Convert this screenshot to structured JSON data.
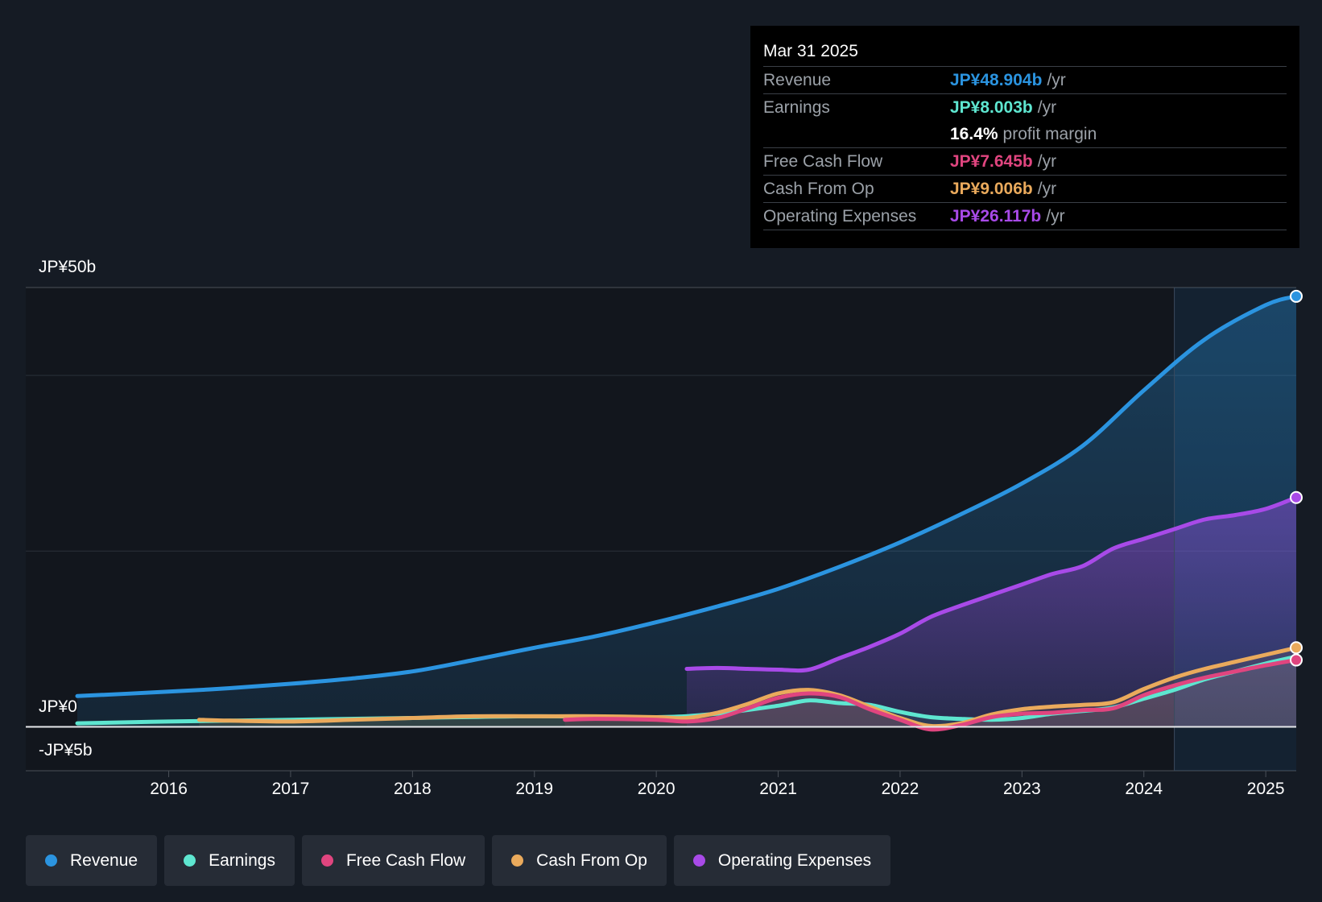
{
  "tooltip": {
    "date": "Mar 31 2025",
    "rows": [
      {
        "label": "Revenue",
        "value": "JP¥48.904b",
        "unit": "/yr",
        "color": "#2b94e0"
      },
      {
        "label": "Earnings",
        "value": "JP¥8.003b",
        "unit": "/yr",
        "color": "#5ee6d0"
      },
      {
        "label": "",
        "value": "16.4%",
        "unit": "profit margin",
        "color": "#ffffff"
      },
      {
        "label": "Free Cash Flow",
        "value": "JP¥7.645b",
        "unit": "/yr",
        "color": "#e0457f"
      },
      {
        "label": "Cash From Op",
        "value": "JP¥9.006b",
        "unit": "/yr",
        "color": "#eaaa5c"
      },
      {
        "label": "Operating Expenses",
        "value": "JP¥26.117b",
        "unit": "/yr",
        "color": "#a84ae8"
      }
    ]
  },
  "legend": [
    {
      "label": "Revenue",
      "color": "#2b94e0"
    },
    {
      "label": "Earnings",
      "color": "#5ee6d0"
    },
    {
      "label": "Free Cash Flow",
      "color": "#e0457f"
    },
    {
      "label": "Cash From Op",
      "color": "#eaaa5c"
    },
    {
      "label": "Operating Expenses",
      "color": "#a84ae8"
    }
  ],
  "chart_data": {
    "type": "line",
    "title": "",
    "xlabel": "",
    "ylabel": "",
    "ylim": [
      -5,
      50
    ],
    "xlim": [
      2015.25,
      2025.25
    ],
    "y_tick_labels": {
      "top": "JP¥50b",
      "zero": "JP¥0",
      "bottom": "-JP¥5b"
    },
    "x_ticks": [
      2016,
      2017,
      2018,
      2019,
      2020,
      2021,
      2022,
      2023,
      2024,
      2025
    ],
    "x_tick_labels": [
      "2016",
      "2017",
      "2018",
      "2019",
      "2020",
      "2021",
      "2022",
      "2023",
      "2024",
      "2025"
    ],
    "highlight_from": 2024.25,
    "series": [
      {
        "name": "Revenue",
        "color": "#2b94e0",
        "fill": true,
        "x": [
          2015.25,
          2016.0,
          2016.5,
          2017.0,
          2017.5,
          2018.0,
          2018.5,
          2019.0,
          2019.5,
          2020.0,
          2020.5,
          2021.0,
          2021.5,
          2022.0,
          2022.5,
          2023.0,
          2023.5,
          2024.0,
          2024.5,
          2025.0,
          2025.25
        ],
        "y": [
          3.5,
          4.0,
          4.4,
          4.9,
          5.5,
          6.3,
          7.6,
          9.0,
          10.3,
          11.9,
          13.7,
          15.7,
          18.2,
          21.0,
          24.2,
          27.7,
          32.0,
          38.3,
          44.1,
          48.0,
          49.0
        ]
      },
      {
        "name": "Operating Expenses",
        "color": "#a84ae8",
        "fill": true,
        "x": [
          2020.25,
          2020.5,
          2020.75,
          2021.0,
          2021.25,
          2021.5,
          2021.75,
          2022.0,
          2022.25,
          2022.5,
          2022.75,
          2023.0,
          2023.25,
          2023.5,
          2023.75,
          2024.0,
          2024.25,
          2024.5,
          2024.75,
          2025.0,
          2025.25
        ],
        "y": [
          6.6,
          6.7,
          6.6,
          6.5,
          6.5,
          7.8,
          9.1,
          10.6,
          12.5,
          13.8,
          15.0,
          16.2,
          17.4,
          18.3,
          20.3,
          21.4,
          22.5,
          23.6,
          24.1,
          24.8,
          26.1
        ]
      },
      {
        "name": "Earnings",
        "color": "#5ee6d0",
        "fill": false,
        "x": [
          2015.25,
          2016.0,
          2017.0,
          2018.0,
          2019.0,
          2020.0,
          2020.5,
          2021.0,
          2021.25,
          2021.5,
          2021.75,
          2022.0,
          2022.25,
          2022.5,
          2022.75,
          2023.0,
          2023.25,
          2023.5,
          2023.75,
          2024.0,
          2024.25,
          2024.5,
          2024.75,
          2025.0,
          2025.25
        ],
        "y": [
          0.4,
          0.6,
          0.8,
          1.0,
          1.2,
          1.1,
          1.5,
          2.4,
          3.0,
          2.7,
          2.5,
          1.7,
          1.1,
          0.9,
          0.8,
          1.0,
          1.5,
          1.8,
          2.2,
          3.2,
          4.2,
          5.4,
          6.3,
          7.2,
          8.0
        ]
      },
      {
        "name": "Free Cash Flow",
        "color": "#e0457f",
        "fill": false,
        "x": [
          2019.25,
          2019.5,
          2020.0,
          2020.25,
          2020.5,
          2020.75,
          2021.0,
          2021.25,
          2021.5,
          2021.75,
          2022.0,
          2022.25,
          2022.5,
          2022.75,
          2023.0,
          2023.25,
          2023.5,
          2023.75,
          2024.0,
          2024.25,
          2024.5,
          2024.75,
          2025.0,
          2025.25
        ],
        "y": [
          0.8,
          0.9,
          0.8,
          0.6,
          1.0,
          2.1,
          3.3,
          3.8,
          3.4,
          2.0,
          0.8,
          -0.3,
          0.2,
          1.1,
          1.5,
          1.6,
          1.9,
          2.1,
          3.6,
          4.7,
          5.6,
          6.3,
          7.0,
          7.6
        ]
      },
      {
        "name": "Cash From Op",
        "color": "#eaaa5c",
        "fill": false,
        "x": [
          2016.25,
          2016.5,
          2017.0,
          2017.5,
          2018.0,
          2018.5,
          2019.0,
          2019.5,
          2020.0,
          2020.25,
          2020.5,
          2020.75,
          2021.0,
          2021.25,
          2021.5,
          2021.75,
          2022.0,
          2022.25,
          2022.5,
          2022.75,
          2023.0,
          2023.25,
          2023.5,
          2023.75,
          2024.0,
          2024.25,
          2024.5,
          2024.75,
          2025.0,
          2025.25
        ],
        "y": [
          0.8,
          0.7,
          0.6,
          0.8,
          1.0,
          1.2,
          1.2,
          1.2,
          1.1,
          1.0,
          1.6,
          2.6,
          3.8,
          4.2,
          3.6,
          2.3,
          1.0,
          0.1,
          0.4,
          1.4,
          2.0,
          2.3,
          2.5,
          2.8,
          4.3,
          5.6,
          6.6,
          7.4,
          8.2,
          9.0
        ]
      }
    ]
  }
}
